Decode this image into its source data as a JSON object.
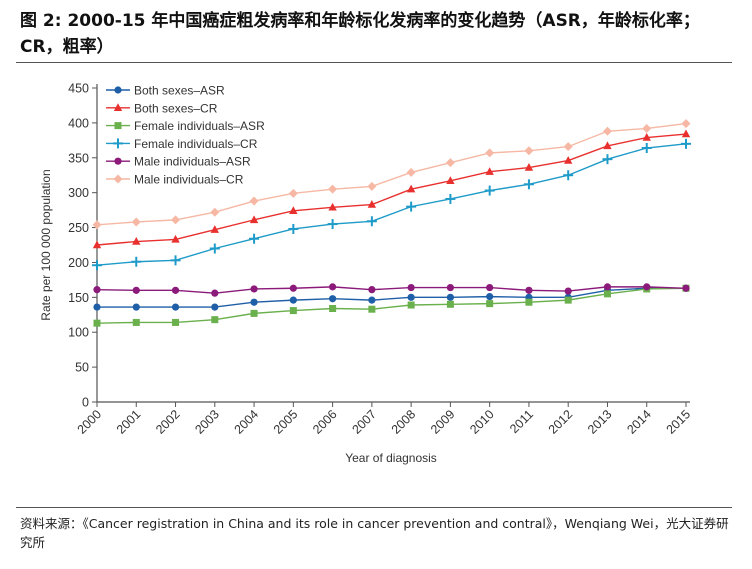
{
  "title": "图 2: 2000-15 年中国癌症粗发病率和年龄标化发病率的变化趋势（ASR，年龄标化率；CR，粗率）",
  "source": "资料来源：《Cancer registration in China and its role in cancer prevention and contral》，Wenqiang Wei，光大证券研究所",
  "chart_data": {
    "type": "line",
    "xlabel": "Year of diagnosis",
    "ylabel": "Rate per 100 000 population",
    "ylim": [
      0,
      450
    ],
    "yticks": [
      0,
      50,
      100,
      150,
      200,
      250,
      300,
      350,
      400,
      450
    ],
    "x": [
      2000,
      2001,
      2002,
      2003,
      2004,
      2005,
      2006,
      2007,
      2008,
      2009,
      2010,
      2011,
      2012,
      2013,
      2014,
      2015
    ],
    "grid": false,
    "legend_position": "top-left",
    "series": [
      {
        "name": "Both sexes–ASR",
        "color": "#1f5fa8",
        "marker": "circle",
        "values": [
          136,
          136,
          136,
          136,
          143,
          146,
          148,
          146,
          150,
          150,
          151,
          150,
          150,
          160,
          163,
          163
        ]
      },
      {
        "name": "Both sexes–CR",
        "color": "#e8312f",
        "marker": "triangle",
        "values": [
          225,
          230,
          233,
          247,
          261,
          274,
          279,
          283,
          305,
          317,
          330,
          336,
          346,
          367,
          379,
          384
        ]
      },
      {
        "name": "Female individuals–ASR",
        "color": "#6ab04c",
        "marker": "square",
        "values": [
          113,
          114,
          114,
          118,
          127,
          131,
          134,
          133,
          139,
          140,
          141,
          143,
          146,
          155,
          162,
          163
        ]
      },
      {
        "name": "Female individuals–CR",
        "color": "#1e9bc8",
        "marker": "plus",
        "values": [
          196,
          201,
          203,
          220,
          234,
          248,
          255,
          259,
          280,
          291,
          303,
          312,
          325,
          348,
          364,
          370
        ]
      },
      {
        "name": "Male individuals–ASR",
        "color": "#8b1a7a",
        "marker": "circle",
        "values": [
          161,
          160,
          160,
          156,
          162,
          163,
          165,
          161,
          164,
          164,
          164,
          160,
          159,
          165,
          165,
          163
        ]
      },
      {
        "name": "Male individuals–CR",
        "color": "#f6b8a4",
        "marker": "diamond",
        "values": [
          254,
          258,
          261,
          272,
          288,
          299,
          305,
          309,
          329,
          343,
          357,
          360,
          366,
          388,
          392,
          399
        ]
      }
    ]
  }
}
